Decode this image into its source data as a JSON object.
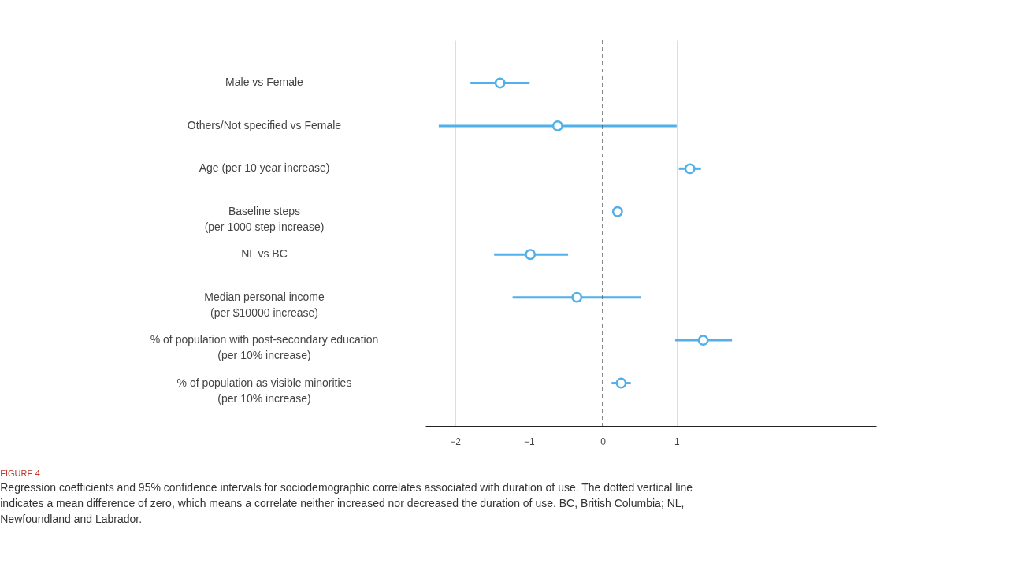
{
  "chart_data": {
    "type": "scatter",
    "title": "FIGURE 4",
    "subtitle": "Regression coefficients and 95% confidence intervals for sociodemographic correlates associated with duration of use. The dotted vertical line indicates a mean difference of zero, which means a correlate neither increased nor decreased the duration of use. BC, British Columbia; NL, Newfoundland and Labrador.",
    "orientation": "horizontal",
    "categories": [
      "Male vs Female",
      "Others/Not specified vs Female",
      "Age (per 10 year increase)",
      "Baseline steps\n(per 1000 step increase)",
      "NL vs BC",
      "Median personal income\n(per $10000 increase)",
      "% of population with post-secondary education\n(per 10% increase)",
      "% of population as visible minorities\n(per 10% increase)"
    ],
    "series": [
      {
        "color": "#4fb0ea",
        "values": [
          -1.39,
          -0.61,
          1.18,
          0.2,
          -0.98,
          -0.35,
          1.36,
          0.25
        ],
        "errors": [
          [
            -1.79,
            -0.99
          ],
          [
            -2.22,
            1.0
          ],
          [
            1.03,
            1.33
          ],
          null,
          [
            -1.47,
            -0.47
          ],
          [
            -1.22,
            0.52
          ],
          [
            0.98,
            1.75
          ],
          [
            0.12,
            0.38
          ]
        ]
      }
    ],
    "xlim": [
      -2.4,
      3.7
    ],
    "xticks": [
      -2,
      -1,
      0,
      1
    ],
    "grid": "x",
    "marker": "circle",
    "ref_lines": [
      {
        "axis": "x",
        "value": 0,
        "color": "#555555",
        "line_style": "dashed"
      }
    ]
  }
}
